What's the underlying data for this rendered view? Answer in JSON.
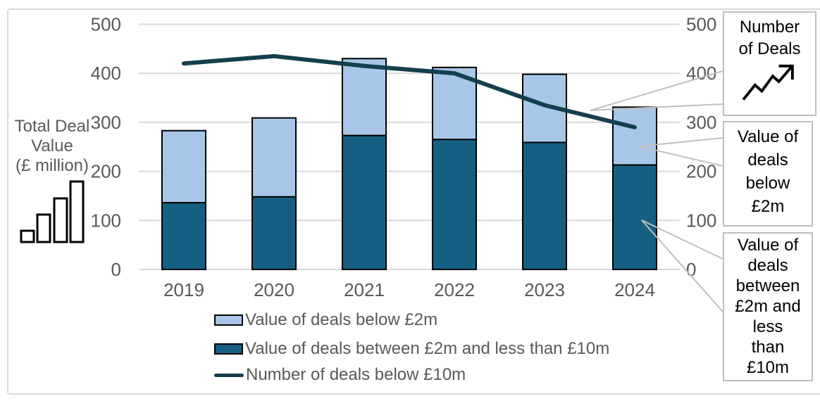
{
  "colors": {
    "light_blue_bar": "#A8C7E8",
    "dark_teal_bar": "#156082",
    "line_dark": "#143F4F",
    "grid": "#D9D9D9",
    "axis_text": "#595959",
    "legend_text": "#595959",
    "callout_border": "#BFBFBF",
    "bar_border": "#000000",
    "callout_text": "#000000"
  },
  "axis_title": {
    "text": "Total Deal\nValue\n(£ million)"
  },
  "chart_data": {
    "type": "stacked-bar+line",
    "categories": [
      "2019",
      "2020",
      "2021",
      "2022",
      "2023",
      "2024"
    ],
    "bar_series": [
      {
        "name": "Value of deals below £2m",
        "position": "top",
        "values": [
          147,
          161,
          157,
          147,
          139,
          118
        ],
        "color": "#A8C7E8"
      },
      {
        "name": "Value of deals between £2m and less than £10m",
        "position": "bottom",
        "values": [
          136,
          148,
          273,
          265,
          259,
          213
        ],
        "color": "#156082"
      }
    ],
    "stack_totals": [
      283,
      309,
      430,
      412,
      398,
      331
    ],
    "line_series": {
      "name": "Number of deals below £10m",
      "values": [
        420,
        435,
        415,
        400,
        335,
        290
      ],
      "color": "#143F4F"
    },
    "left_axis": {
      "label": "Total Deal Value (£ million)",
      "min": 0,
      "max": 500,
      "step": 100
    },
    "right_axis": {
      "label": "Number of Deals",
      "min": 0,
      "max": 500,
      "step": 100
    },
    "grid": true,
    "legend_position": "bottom"
  },
  "legend": {
    "items": [
      {
        "swatch": "bar-light",
        "label": "Value of deals below £2m"
      },
      {
        "swatch": "bar-dark",
        "label": "Value of deals between £2m and less than £10m"
      },
      {
        "swatch": "line",
        "label": "Number of deals below £10m"
      }
    ]
  },
  "callouts": [
    {
      "id": "number-of-deals",
      "label": "Number\nof Deals",
      "icon": "trend-up-arrow"
    },
    {
      "id": "value-below-2m",
      "label": "Value of\ndeals\nbelow\n£2m"
    },
    {
      "id": "value-2m-to-10m",
      "label": "Value of\ndeals\nbetween\n£2m and\nless\nthan\n£10m"
    }
  ]
}
